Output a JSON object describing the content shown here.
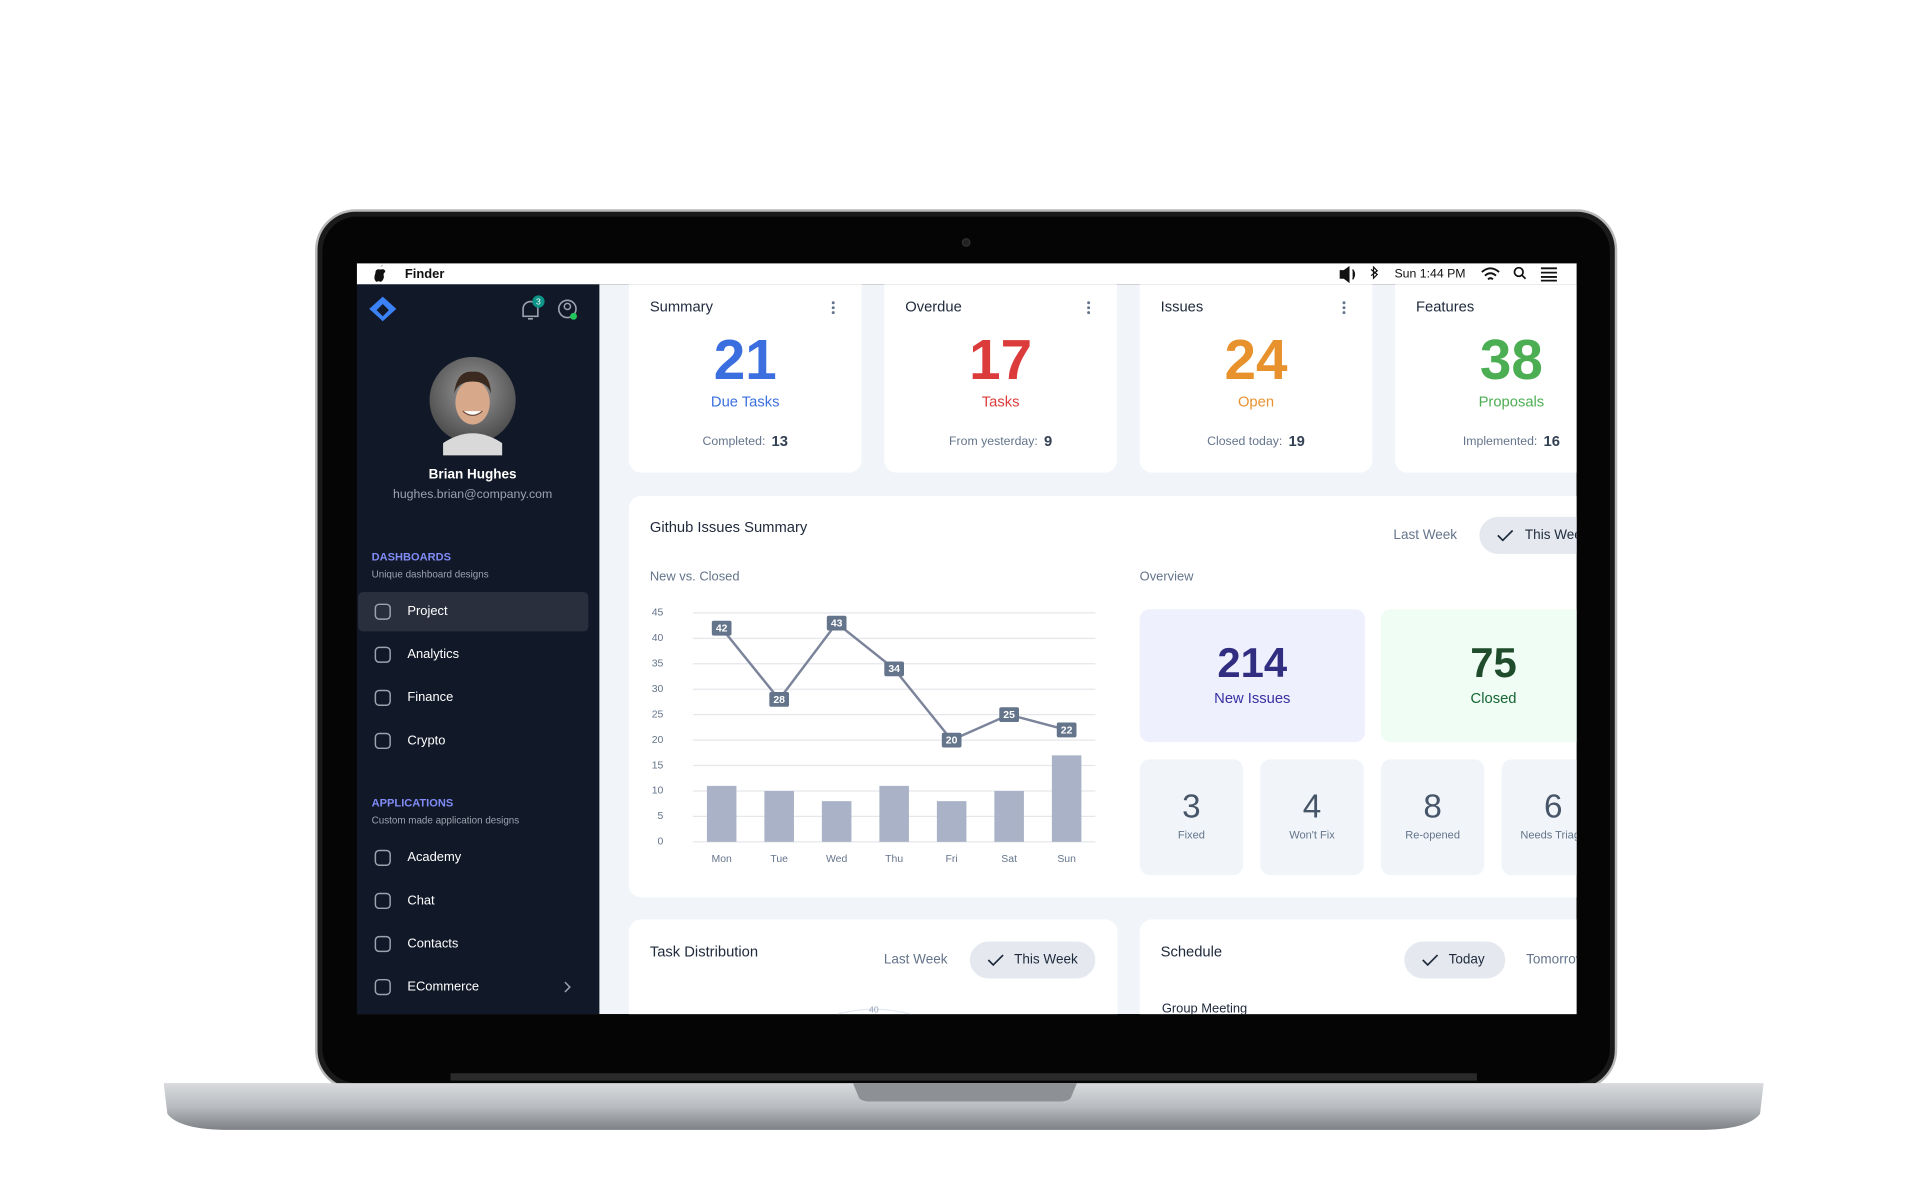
{
  "menu_bar": {
    "app": "Finder",
    "clock": "Sun 1:44 PM"
  },
  "sidebar": {
    "notifications": 3,
    "user": {
      "name": "Brian Hughes",
      "email": "hughes.brian@company.com"
    },
    "groups": [
      {
        "title": "DASHBOARDS",
        "subtitle": "Unique dashboard designs",
        "items": [
          "Project",
          "Analytics",
          "Finance",
          "Crypto"
        ]
      },
      {
        "title": "APPLICATIONS",
        "subtitle": "Custom made application designs",
        "items": [
          "Academy",
          "Chat",
          "Contacts",
          "ECommerce"
        ]
      }
    ]
  },
  "cards": [
    {
      "title": "Summary",
      "value": 21,
      "label": "Due Tasks",
      "footer_label": "Completed:",
      "footer_value": 13,
      "color": "#3b6fe0"
    },
    {
      "title": "Overdue",
      "value": 17,
      "label": "Tasks",
      "footer_label": "From yesterday:",
      "footer_value": 9,
      "color": "#dc3b3b"
    },
    {
      "title": "Issues",
      "value": 24,
      "label": "Open",
      "footer_label": "Closed today:",
      "footer_value": 19,
      "color": "#e8922e"
    },
    {
      "title": "Features",
      "value": 38,
      "label": "Proposals",
      "footer_label": "Implemented:",
      "footer_value": 16,
      "color": "#4cae52"
    }
  ],
  "github": {
    "title": "Github Issues Summary",
    "tabs": [
      "Last Week",
      "This Week"
    ],
    "chart": {
      "type": "line-bar",
      "subtitle": "New vs. Closed",
      "categories": [
        "Mon",
        "Tue",
        "Wed",
        "Thu",
        "Fri",
        "Sat",
        "Sun"
      ],
      "series": [
        {
          "type": "line",
          "color": "#7b849a",
          "values": [
            42,
            28,
            43,
            34,
            20,
            25,
            22
          ]
        },
        {
          "type": "bar",
          "color": "#a9b2c6",
          "values": [
            11,
            10,
            8,
            11,
            8,
            10,
            17
          ]
        }
      ],
      "ylim": [
        0,
        45
      ],
      "yticks": [
        0,
        5,
        10,
        15,
        20,
        25,
        30,
        35,
        40,
        45
      ],
      "grid": true
    },
    "overview": {
      "title": "Overview",
      "big": [
        {
          "value": 214,
          "label": "New Issues"
        },
        {
          "value": 75,
          "label": "Closed"
        }
      ],
      "small": [
        {
          "value": 3,
          "label": "Fixed"
        },
        {
          "value": 4,
          "label": "Won't Fix"
        },
        {
          "value": 8,
          "label": "Re-opened"
        },
        {
          "value": 6,
          "label": "Needs Triage"
        }
      ]
    }
  },
  "task_distribution": {
    "title": "Task Distribution",
    "tabs": [
      "Last Week",
      "This Week"
    ],
    "tick": 40
  },
  "schedule": {
    "title": "Schedule",
    "tabs": [
      "Today",
      "Tomorrow"
    ],
    "first_item": "Group Meeting"
  }
}
